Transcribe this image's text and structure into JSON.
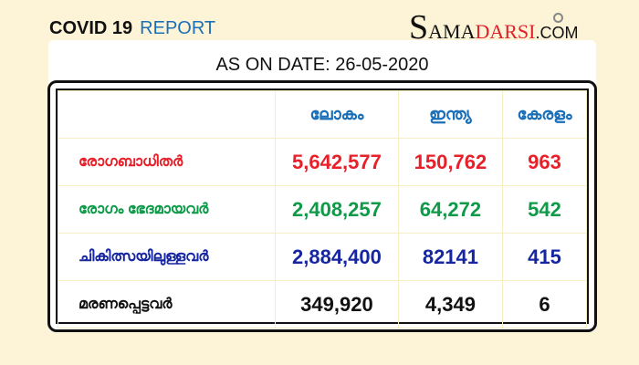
{
  "header": {
    "title": "COVID 19",
    "title_accent": "REPORT"
  },
  "logo": {
    "initial": "S",
    "part1": "AMA",
    "part2": "DARSI",
    "domain": ".COM"
  },
  "date_line": "AS ON DATE: 26-05-2020",
  "table": {
    "columns": [
      "",
      "ലോകം",
      "ഇന്ത്യ",
      "കേരളം"
    ],
    "rows": [
      {
        "label": "രോഗബാധിതർ",
        "world": "5,642,577",
        "india": "150,762",
        "kerala": "963",
        "color": "#e8202a"
      },
      {
        "label": "രോഗം ഭേദമായവർ",
        "world": "2,408,257",
        "india": "64,272",
        "kerala": "542",
        "color": "#0e9a48"
      },
      {
        "label": "ചികിത്സയിലുള്ളവർ",
        "world": "2,884,400",
        "india": "82141",
        "kerala": "415",
        "color": "#1626a0"
      },
      {
        "label": "മരണപ്പെട്ടവർ",
        "world": "349,920",
        "india": "4,349",
        "kerala": "6",
        "color": "#111111"
      }
    ]
  }
}
